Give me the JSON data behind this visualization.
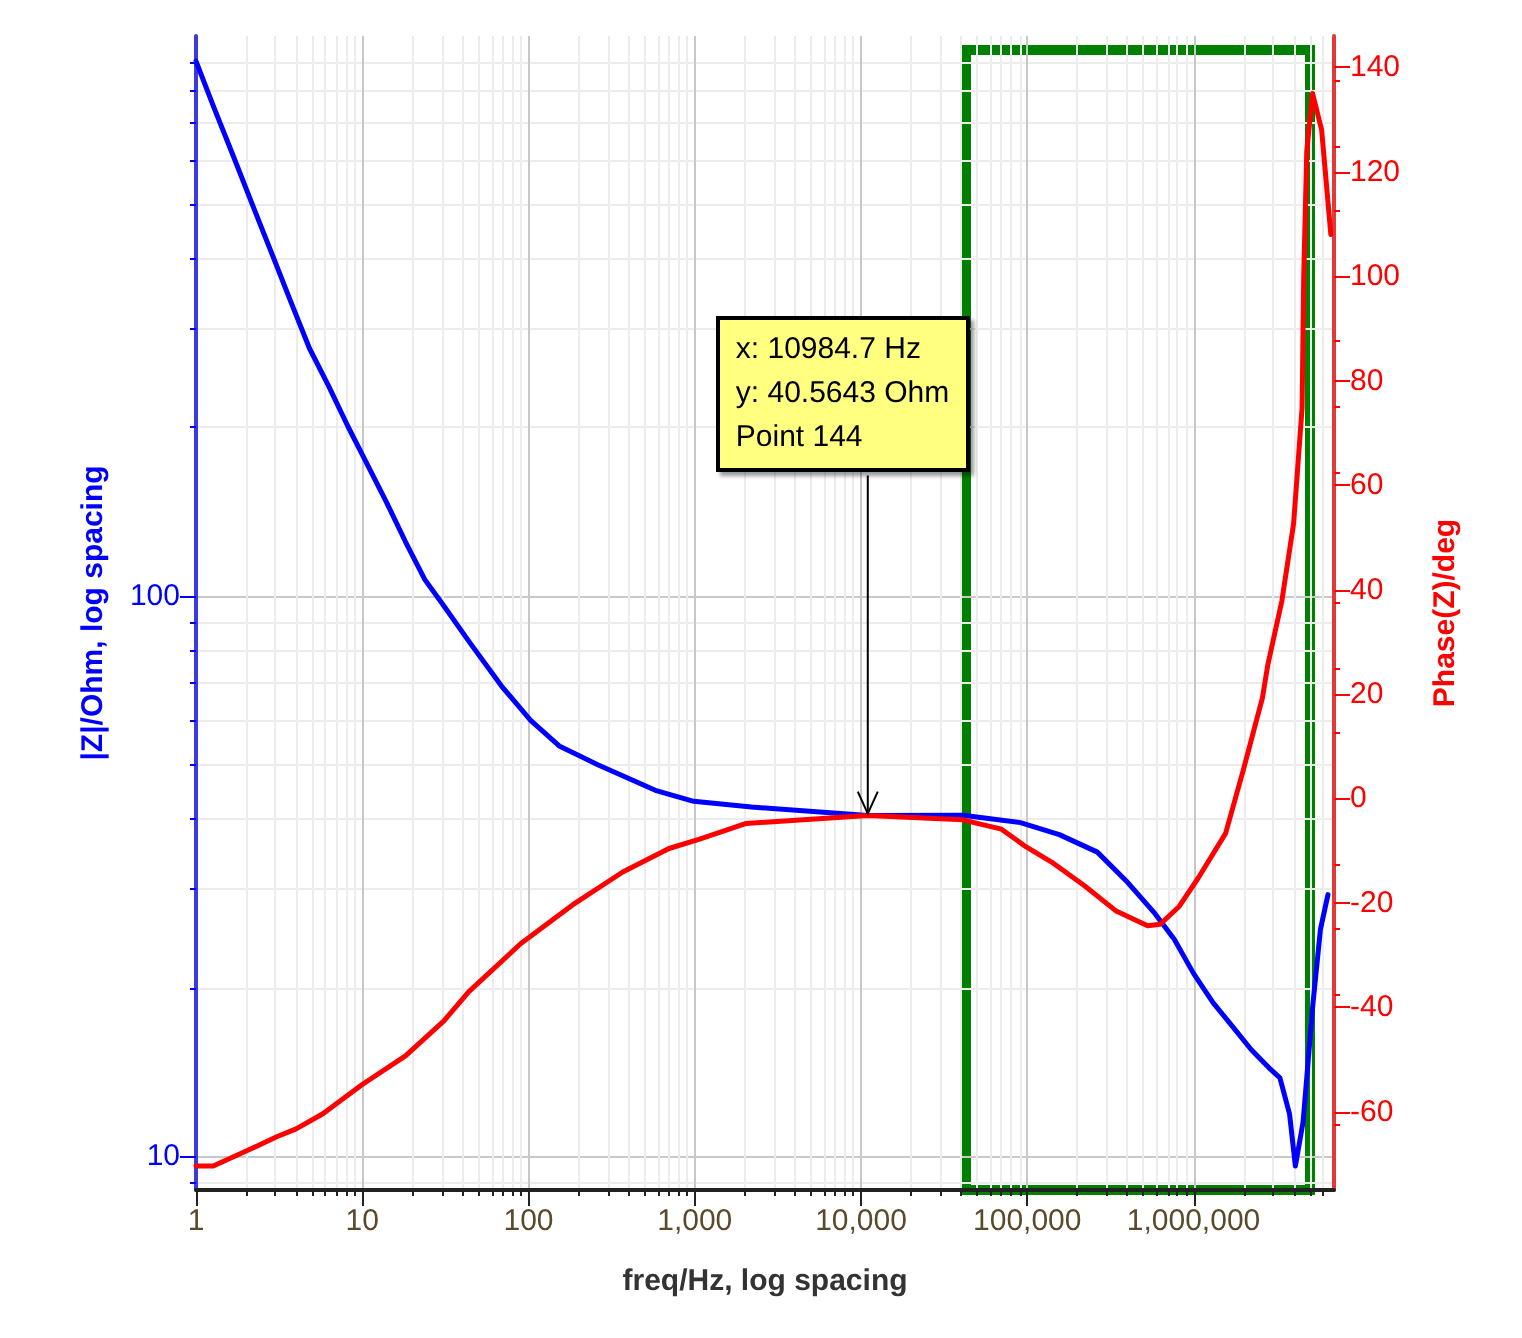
{
  "chart_data": {
    "type": "line",
    "xlabel": "freq/Hz, log spacing",
    "ylabel": "|Z|/Ohm, log spacing",
    "y2label": "Phase(Z)/deg",
    "log": "xy",
    "grid": true,
    "marker": "none",
    "line_style": "solid",
    "xlim": [
      1,
      7000000
    ],
    "ylim": [
      8.7,
      1000
    ],
    "y2lim": [
      -75,
      146
    ],
    "xticks": [
      {
        "value": 1,
        "label": "1"
      },
      {
        "value": 10,
        "label": "10"
      },
      {
        "value": 100,
        "label": "100"
      },
      {
        "value": 1000,
        "label": "1,000"
      },
      {
        "value": 10000,
        "label": "10,000"
      },
      {
        "value": 100000,
        "label": "100,000"
      },
      {
        "value": 1000000,
        "label": "1,000,000"
      }
    ],
    "yticks": [
      10,
      100
    ],
    "y2ticks": [
      -60,
      -40,
      -20,
      0,
      20,
      40,
      60,
      80,
      100,
      120,
      140
    ],
    "series": [
      {
        "color": "#0000ff",
        "axis": "y",
        "x": [
          1,
          1.27,
          1.66,
          2.16,
          2.82,
          3.68,
          4.81,
          6.28,
          8.19,
          10.7,
          14,
          18.2,
          23.8,
          31,
          43.8,
          69,
          103,
          153,
          261,
          579,
          986,
          2190,
          10985,
          41000,
          91000,
          156000,
          264000,
          394000,
          587000,
          766000,
          1000000,
          1310000,
          1700000,
          2220000,
          2900000,
          3310000,
          3780000,
          4100000,
          4560000,
          5210000,
          5800000,
          6440000
        ],
        "values": [
          902,
          750,
          615,
          504,
          413,
          338,
          277,
          237,
          201,
          172,
          147,
          125,
          107,
          96,
          83,
          69,
          60,
          54,
          50,
          45,
          43,
          42,
          40.56,
          40.6,
          39.4,
          37.5,
          34.9,
          31,
          27.1,
          24.4,
          21.2,
          18.8,
          17.1,
          15.5,
          14.3,
          13.8,
          11.9,
          9.6,
          11.5,
          18.5,
          25.4,
          29.3
        ]
      },
      {
        "color": "#ff0000",
        "axis": "y2",
        "x": [
          1,
          1.27,
          2.05,
          3.06,
          4.0,
          5.8,
          10,
          18.2,
          31,
          43.8,
          90,
          184,
          369,
          700,
          1070,
          2040,
          10985,
          41000,
          50000,
          70000,
          98600,
          140000,
          220000,
          340000,
          530000,
          630000,
          820000,
          1070000,
          1560000,
          2000000,
          2600000,
          2800000,
          3400000,
          4000000,
          4500000,
          4600000,
          4800000,
          5200000,
          5900000,
          6700000
        ],
        "values": [
          -70.4,
          -70.4,
          -67.4,
          -64.8,
          -63.3,
          -60.4,
          -54.8,
          -49.3,
          -42.6,
          -37,
          -27.8,
          -20.4,
          -14.1,
          -9.6,
          -7.8,
          -4.8,
          -3.3,
          -4.1,
          -4.8,
          -5.9,
          -9.3,
          -12.2,
          -16.7,
          -21.5,
          -24.4,
          -24.1,
          -20.7,
          -15.2,
          -6.7,
          5.6,
          19.3,
          25.6,
          37.8,
          52.6,
          74.8,
          99.6,
          124,
          135,
          128,
          108
        ]
      }
    ],
    "annotations": [
      {
        "text": "x: 10984.7 Hz\ny: 40.5643 Ohm\nPoint 144",
        "x": 10985,
        "y": 40.56
      }
    ]
  }
}
